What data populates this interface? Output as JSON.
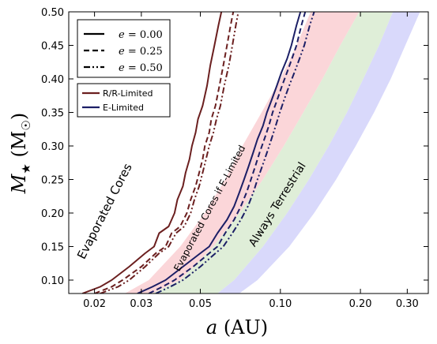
{
  "chart_data": {
    "type": "line",
    "xlabel": "a (AU)",
    "ylabel": "M★ (M☉)",
    "x_scale": "log",
    "xlim": [
      0.016,
      0.36
    ],
    "ylim": [
      0.08,
      0.5
    ],
    "xticks": [
      {
        "value": 0.02,
        "label": "0.02"
      },
      {
        "value": 0.03,
        "label": "0.03"
      },
      {
        "value": 0.05,
        "label": "0.05"
      },
      {
        "value": 0.1,
        "label": "0.10"
      },
      {
        "value": 0.2,
        "label": "0.20"
      },
      {
        "value": 0.3,
        "label": "0.30"
      }
    ],
    "yticks": [
      {
        "value": 0.1,
        "label": "0.10"
      },
      {
        "value": 0.15,
        "label": "0.15"
      },
      {
        "value": 0.2,
        "label": "0.20"
      },
      {
        "value": 0.25,
        "label": "0.25"
      },
      {
        "value": 0.3,
        "label": "0.30"
      },
      {
        "value": 0.35,
        "label": "0.35"
      },
      {
        "value": 0.4,
        "label": "0.40"
      },
      {
        "value": 0.45,
        "label": "0.45"
      },
      {
        "value": 0.5,
        "label": "0.50"
      }
    ],
    "bands": [
      {
        "color": "#fbd6d9",
        "lower": [
          [
            0.026,
            0.08
          ],
          [
            0.032,
            0.1
          ],
          [
            0.042,
            0.15
          ],
          [
            0.052,
            0.2
          ],
          [
            0.062,
            0.25
          ],
          [
            0.072,
            0.3
          ],
          [
            0.085,
            0.35
          ],
          [
            0.1,
            0.4
          ],
          [
            0.115,
            0.45
          ],
          [
            0.13,
            0.5
          ]
        ],
        "upper": [
          [
            0.033,
            0.08
          ],
          [
            0.042,
            0.1
          ],
          [
            0.056,
            0.15
          ],
          [
            0.07,
            0.2
          ],
          [
            0.086,
            0.25
          ],
          [
            0.103,
            0.3
          ],
          [
            0.122,
            0.35
          ],
          [
            0.144,
            0.4
          ],
          [
            0.168,
            0.45
          ],
          [
            0.198,
            0.5
          ]
        ]
      },
      {
        "color": "#dfeed8",
        "lower": [
          [
            0.033,
            0.08
          ],
          [
            0.042,
            0.1
          ],
          [
            0.056,
            0.15
          ],
          [
            0.07,
            0.2
          ],
          [
            0.086,
            0.25
          ],
          [
            0.103,
            0.3
          ],
          [
            0.122,
            0.35
          ],
          [
            0.144,
            0.4
          ],
          [
            0.168,
            0.45
          ],
          [
            0.198,
            0.5
          ]
        ],
        "upper": [
          [
            0.058,
            0.08
          ],
          [
            0.067,
            0.1
          ],
          [
            0.086,
            0.15
          ],
          [
            0.106,
            0.2
          ],
          [
            0.128,
            0.25
          ],
          [
            0.152,
            0.3
          ],
          [
            0.178,
            0.35
          ],
          [
            0.205,
            0.4
          ],
          [
            0.235,
            0.45
          ],
          [
            0.265,
            0.5
          ]
        ]
      },
      {
        "color": "#d9d9fb",
        "lower": [
          [
            0.058,
            0.08
          ],
          [
            0.067,
            0.1
          ],
          [
            0.086,
            0.15
          ],
          [
            0.106,
            0.2
          ],
          [
            0.128,
            0.25
          ],
          [
            0.152,
            0.3
          ],
          [
            0.178,
            0.35
          ],
          [
            0.205,
            0.4
          ],
          [
            0.235,
            0.45
          ],
          [
            0.265,
            0.5
          ]
        ],
        "upper": [
          [
            0.07,
            0.08
          ],
          [
            0.082,
            0.1
          ],
          [
            0.108,
            0.15
          ],
          [
            0.134,
            0.2
          ],
          [
            0.162,
            0.25
          ],
          [
            0.192,
            0.3
          ],
          [
            0.225,
            0.35
          ],
          [
            0.26,
            0.4
          ],
          [
            0.295,
            0.45
          ],
          [
            0.335,
            0.5
          ]
        ]
      }
    ],
    "series": [
      {
        "name": "R/R-Limited",
        "e": "0.00",
        "color": "#6b1f1f",
        "dash": "solid",
        "points": [
          [
            0.018,
            0.08
          ],
          [
            0.021,
            0.09
          ],
          [
            0.0232,
            0.1
          ],
          [
            0.027,
            0.12
          ],
          [
            0.031,
            0.14
          ],
          [
            0.0335,
            0.15
          ],
          [
            0.035,
            0.17
          ],
          [
            0.038,
            0.18
          ],
          [
            0.04,
            0.2
          ],
          [
            0.041,
            0.22
          ],
          [
            0.043,
            0.24
          ],
          [
            0.044,
            0.26
          ],
          [
            0.0455,
            0.28
          ],
          [
            0.0465,
            0.3
          ],
          [
            0.048,
            0.32
          ],
          [
            0.049,
            0.34
          ],
          [
            0.051,
            0.36
          ],
          [
            0.053,
            0.39
          ],
          [
            0.0545,
            0.42
          ],
          [
            0.0565,
            0.45
          ],
          [
            0.0585,
            0.48
          ],
          [
            0.06,
            0.5
          ]
        ]
      },
      {
        "name": "R/R-Limited",
        "e": "0.25",
        "color": "#6b1f1f",
        "dash": "dashed",
        "points": [
          [
            0.02,
            0.08
          ],
          [
            0.0232,
            0.09
          ],
          [
            0.0255,
            0.1
          ],
          [
            0.03,
            0.12
          ],
          [
            0.034,
            0.14
          ],
          [
            0.037,
            0.15
          ],
          [
            0.039,
            0.17
          ],
          [
            0.042,
            0.18
          ],
          [
            0.0445,
            0.2
          ],
          [
            0.046,
            0.22
          ],
          [
            0.048,
            0.24
          ],
          [
            0.0495,
            0.26
          ],
          [
            0.051,
            0.28
          ],
          [
            0.052,
            0.3
          ],
          [
            0.054,
            0.32
          ],
          [
            0.055,
            0.34
          ],
          [
            0.057,
            0.36
          ],
          [
            0.059,
            0.39
          ],
          [
            0.061,
            0.42
          ],
          [
            0.063,
            0.45
          ],
          [
            0.065,
            0.48
          ],
          [
            0.0665,
            0.5
          ]
        ]
      },
      {
        "name": "R/R-Limited",
        "e": "0.50",
        "color": "#6b1f1f",
        "dash": "dashdot",
        "points": [
          [
            0.021,
            0.08
          ],
          [
            0.0245,
            0.09
          ],
          [
            0.027,
            0.1
          ],
          [
            0.031,
            0.12
          ],
          [
            0.035,
            0.14
          ],
          [
            0.038,
            0.15
          ],
          [
            0.0405,
            0.17
          ],
          [
            0.0435,
            0.18
          ],
          [
            0.046,
            0.2
          ],
          [
            0.0475,
            0.22
          ],
          [
            0.0495,
            0.24
          ],
          [
            0.051,
            0.26
          ],
          [
            0.0525,
            0.28
          ],
          [
            0.054,
            0.3
          ],
          [
            0.056,
            0.32
          ],
          [
            0.0575,
            0.34
          ],
          [
            0.0595,
            0.36
          ],
          [
            0.0615,
            0.39
          ],
          [
            0.064,
            0.42
          ],
          [
            0.066,
            0.45
          ],
          [
            0.068,
            0.48
          ],
          [
            0.0695,
            0.5
          ]
        ]
      },
      {
        "name": "E-Limited",
        "e": "0.00",
        "color": "#1c1f66",
        "dash": "solid",
        "points": [
          [
            0.029,
            0.08
          ],
          [
            0.033,
            0.09
          ],
          [
            0.037,
            0.1
          ],
          [
            0.043,
            0.12
          ],
          [
            0.05,
            0.14
          ],
          [
            0.054,
            0.15
          ],
          [
            0.058,
            0.17
          ],
          [
            0.063,
            0.19
          ],
          [
            0.067,
            0.21
          ],
          [
            0.07,
            0.23
          ],
          [
            0.073,
            0.25
          ],
          [
            0.076,
            0.27
          ],
          [
            0.079,
            0.29
          ],
          [
            0.082,
            0.31
          ],
          [
            0.086,
            0.33
          ],
          [
            0.089,
            0.35
          ],
          [
            0.093,
            0.37
          ],
          [
            0.097,
            0.39
          ],
          [
            0.101,
            0.41
          ],
          [
            0.106,
            0.43
          ],
          [
            0.11,
            0.45
          ],
          [
            0.115,
            0.48
          ],
          [
            0.119,
            0.5
          ]
        ]
      },
      {
        "name": "E-Limited",
        "e": "0.25",
        "color": "#1c1f66",
        "dash": "dashed",
        "points": [
          [
            0.032,
            0.08
          ],
          [
            0.036,
            0.09
          ],
          [
            0.04,
            0.1
          ],
          [
            0.047,
            0.12
          ],
          [
            0.054,
            0.14
          ],
          [
            0.058,
            0.15
          ],
          [
            0.062,
            0.17
          ],
          [
            0.067,
            0.19
          ],
          [
            0.071,
            0.21
          ],
          [
            0.0745,
            0.23
          ],
          [
            0.0775,
            0.25
          ],
          [
            0.0805,
            0.27
          ],
          [
            0.0835,
            0.29
          ],
          [
            0.087,
            0.31
          ],
          [
            0.0905,
            0.33
          ],
          [
            0.0935,
            0.35
          ],
          [
            0.0975,
            0.37
          ],
          [
            0.1015,
            0.39
          ],
          [
            0.106,
            0.41
          ],
          [
            0.1105,
            0.43
          ],
          [
            0.115,
            0.45
          ],
          [
            0.12,
            0.48
          ],
          [
            0.124,
            0.5
          ]
        ]
      },
      {
        "name": "E-Limited",
        "e": "0.50",
        "color": "#1c1f66",
        "dash": "dashdot",
        "points": [
          [
            0.034,
            0.08
          ],
          [
            0.0385,
            0.09
          ],
          [
            0.043,
            0.1
          ],
          [
            0.05,
            0.12
          ],
          [
            0.057,
            0.14
          ],
          [
            0.061,
            0.15
          ],
          [
            0.066,
            0.17
          ],
          [
            0.071,
            0.19
          ],
          [
            0.0755,
            0.21
          ],
          [
            0.079,
            0.23
          ],
          [
            0.082,
            0.25
          ],
          [
            0.0855,
            0.27
          ],
          [
            0.089,
            0.29
          ],
          [
            0.0925,
            0.31
          ],
          [
            0.096,
            0.33
          ],
          [
            0.0995,
            0.35
          ],
          [
            0.1035,
            0.37
          ],
          [
            0.108,
            0.39
          ],
          [
            0.113,
            0.41
          ],
          [
            0.118,
            0.43
          ],
          [
            0.123,
            0.45
          ],
          [
            0.129,
            0.48
          ],
          [
            0.134,
            0.5
          ]
        ]
      }
    ],
    "legend_styles": [
      {
        "label": "e = 0.00",
        "dash": "solid"
      },
      {
        "label": "e = 0.25",
        "dash": "dashed"
      },
      {
        "label": "e = 0.50",
        "dash": "dashdot"
      }
    ],
    "legend_models": [
      {
        "label": "R/R-Limited",
        "color": "#6b1f1f"
      },
      {
        "label": "E-Limited",
        "color": "#1c1f66"
      }
    ],
    "legend_placement": "top-left",
    "annotations": [
      {
        "text": "Evaporated Cores",
        "x": 0.0225,
        "y": 0.2,
        "rotation": -63,
        "size": 15
      },
      {
        "text": "Evaporated Cores if E-Limited",
        "x": 0.0555,
        "y": 0.205,
        "rotation": -62,
        "size": 12
      },
      {
        "text": "Always Terrestrial",
        "x": 0.1,
        "y": 0.21,
        "rotation": -58,
        "size": 14
      }
    ]
  }
}
